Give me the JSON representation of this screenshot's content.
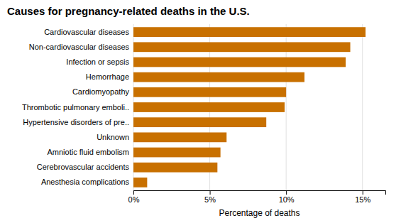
{
  "chart_data": {
    "type": "bar",
    "orientation": "horizontal",
    "title": "Causes for pregnancy-related deaths in the U.S.",
    "categories": [
      "Anesthesia complications",
      "Cerebrovascular accidents",
      "Amniotic fluid embolism",
      "Unknown",
      "Hypertensive disorders of pre..",
      "Thrombotic pulmonary emboli..",
      "Cardiomyopathy",
      "Hemorrhage",
      "Infection or sepsis",
      "Non-cardiovascular diseases",
      "Cardiovascular diseases"
    ],
    "values": [
      0.9,
      5.5,
      5.7,
      6.1,
      8.7,
      9.9,
      10.0,
      11.2,
      13.9,
      14.2,
      15.2
    ],
    "color": "#C87000",
    "xlabel": "Percentage of deaths",
    "xlim": [
      0,
      16.5
    ],
    "xticks": [
      {
        "value": 0,
        "label": "0%"
      },
      {
        "value": 5,
        "label": "5%"
      },
      {
        "value": 10,
        "label": "10%"
      },
      {
        "value": 15,
        "label": "15%"
      }
    ],
    "grid": true
  }
}
